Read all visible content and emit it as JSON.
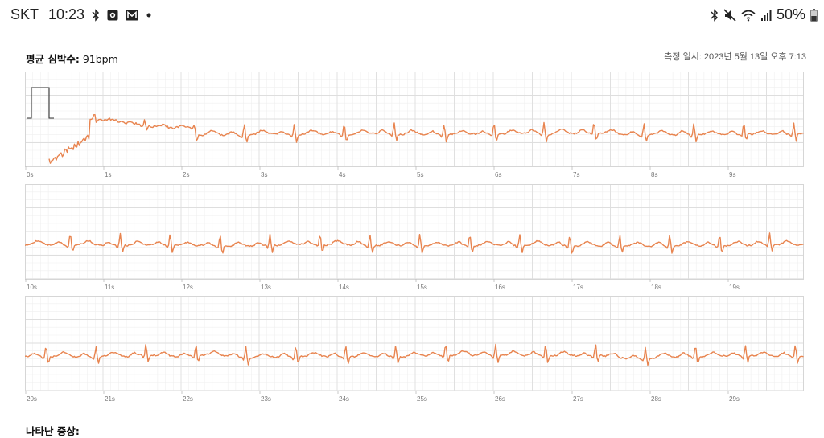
{
  "status_bar": {
    "carrier": "SKT",
    "time": "10:23",
    "battery": "50%",
    "left_icons": [
      "bluetooth-icon",
      "record-icon",
      "gmail-icon",
      "notification-dot-icon"
    ],
    "right_icons": [
      "bluetooth-icon",
      "mute-icon",
      "wifi-icon",
      "signal-icon",
      "battery-icon"
    ]
  },
  "header": {
    "avg_hr_label": "평균 심박수:",
    "avg_hr_value": "91bpm",
    "measured_at": "측정 일시: 2023년 5월 13일 오후 7:13"
  },
  "section_title": "나타난 증상:",
  "ecg": {
    "trace_color": "#e8844f",
    "grid_major_color": "#dedede",
    "grid_minor_color": "#efefef",
    "seconds_per_strip": 10,
    "strips": [
      {
        "start": 0,
        "labels": [
          "0s",
          "1s",
          "2s",
          "3s",
          "4s",
          "5s",
          "6s",
          "7s",
          "8s",
          "9s"
        ]
      },
      {
        "start": 10,
        "labels": [
          "10s",
          "11s",
          "12s",
          "13s",
          "14s",
          "15s",
          "16s",
          "17s",
          "18s",
          "19s"
        ]
      },
      {
        "start": 20,
        "labels": [
          "20s",
          "21s",
          "22s",
          "23s",
          "24s",
          "25s",
          "26s",
          "27s",
          "28s",
          "29s"
        ]
      }
    ]
  }
}
